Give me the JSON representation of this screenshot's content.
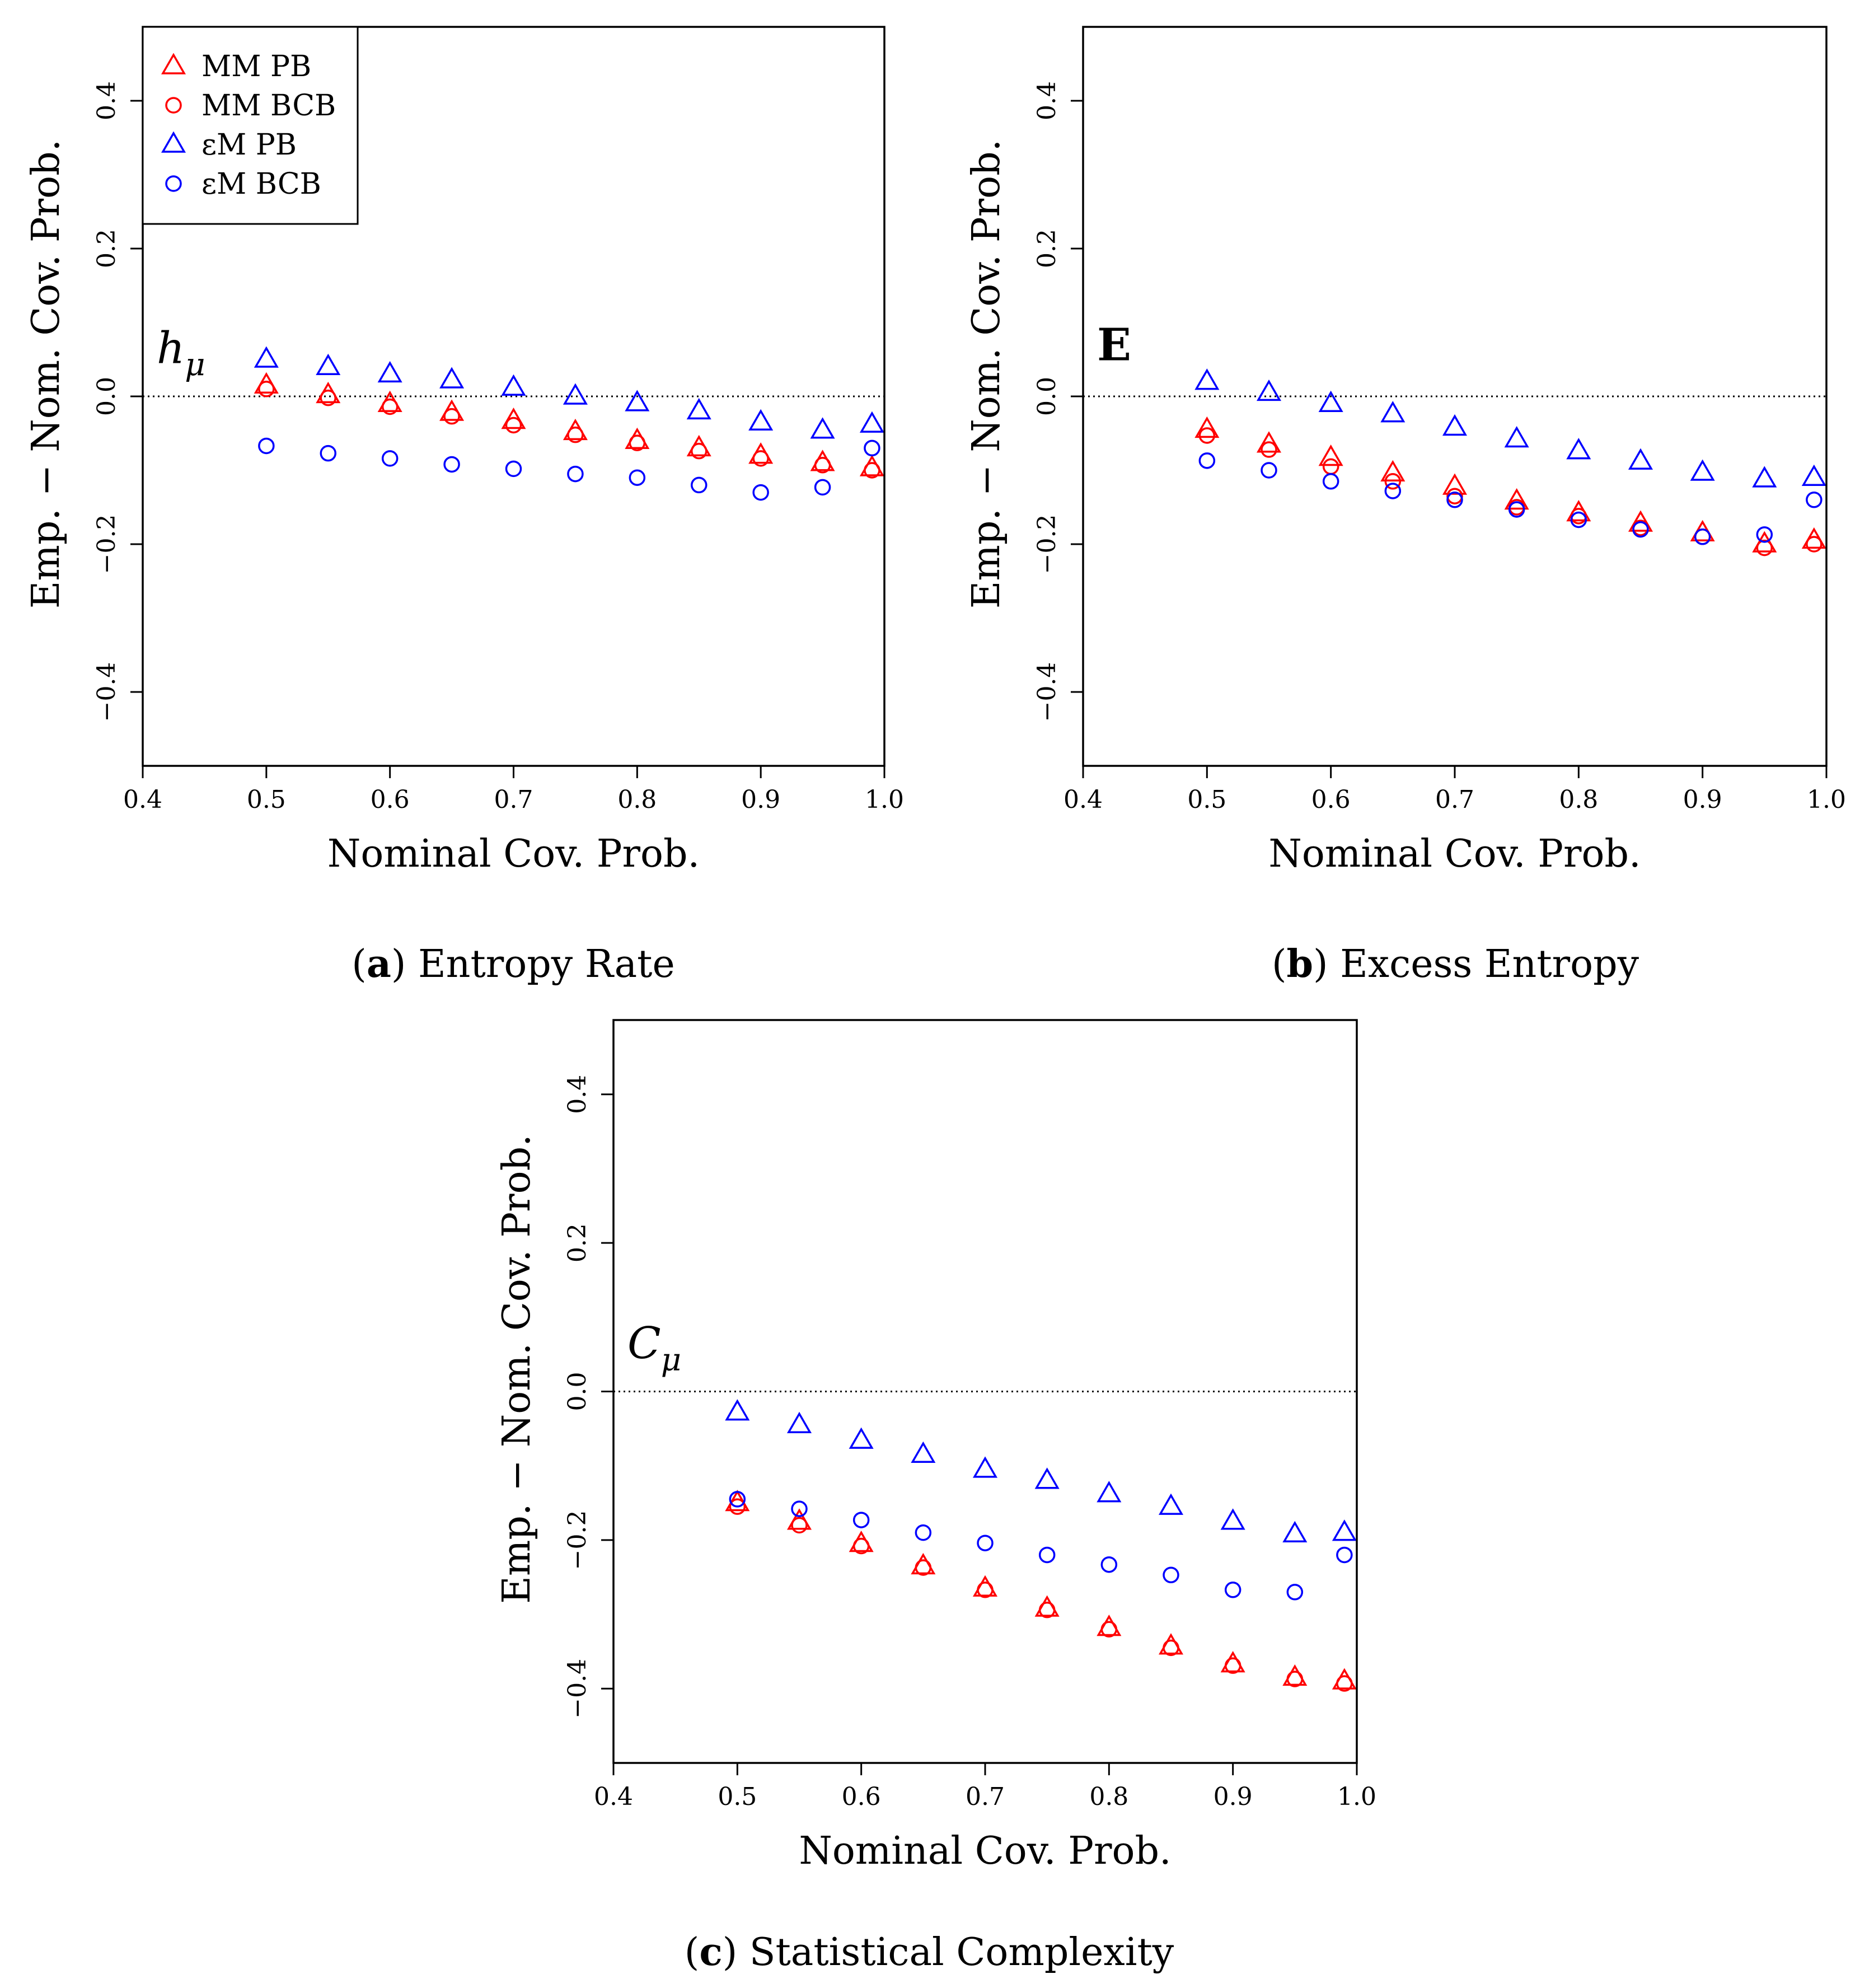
{
  "panels": [
    {
      "key": "a",
      "caption_letter": "a",
      "caption_text": "Entropy Rate",
      "var_label": "h",
      "var_sub": "μ",
      "chart_data": {
        "type": "scatter",
        "title": "",
        "xlabel": "Nominal Cov. Prob.",
        "ylabel": "Emp. − Nom. Cov. Prob.",
        "xlim": [
          0.4,
          1.0
        ],
        "ylim": [
          -0.5,
          0.5
        ],
        "xticks": [
          "0.4",
          "0.5",
          "0.6",
          "0.7",
          "0.8",
          "0.9",
          "1.0"
        ],
        "yticks": [
          "−0.4",
          "−0.2",
          "0.0",
          "0.2",
          "0.4"
        ],
        "reference_line_y": 0,
        "legend": [
          "MM PB",
          "MM BCB",
          "εM PB",
          "εM BCB"
        ],
        "legend_position": "top-left",
        "x": [
          0.5,
          0.55,
          0.6,
          0.65,
          0.7,
          0.75,
          0.8,
          0.85,
          0.9,
          0.95,
          0.99
        ],
        "series": [
          {
            "name": "MM PB",
            "marker": "triangle",
            "color": "#ff0000",
            "values": [
              0.015,
              0.002,
              -0.01,
              -0.022,
              -0.033,
              -0.048,
              -0.06,
              -0.07,
              -0.08,
              -0.09,
              -0.097
            ]
          },
          {
            "name": "MM BCB",
            "marker": "circle",
            "color": "#ff0000",
            "values": [
              0.01,
              -0.002,
              -0.014,
              -0.027,
              -0.039,
              -0.052,
              -0.063,
              -0.074,
              -0.084,
              -0.093,
              -0.1
            ]
          },
          {
            "name": "εM PB",
            "marker": "triangle",
            "color": "#0000ff",
            "values": [
              0.05,
              0.04,
              0.03,
              0.022,
              0.012,
              0.0,
              -0.009,
              -0.02,
              -0.035,
              -0.046,
              -0.038
            ]
          },
          {
            "name": "εM BCB",
            "marker": "circle",
            "color": "#0000ff",
            "values": [
              -0.067,
              -0.077,
              -0.084,
              -0.092,
              -0.098,
              -0.105,
              -0.11,
              -0.12,
              -0.13,
              -0.123,
              -0.07
            ]
          }
        ]
      }
    },
    {
      "key": "b",
      "caption_letter": "b",
      "caption_text": "Excess Entropy",
      "var_label": "E",
      "var_sub": "",
      "chart_data": {
        "type": "scatter",
        "title": "",
        "xlabel": "Nominal Cov. Prob.",
        "ylabel": "Emp. − Nom. Cov. Prob.",
        "xlim": [
          0.4,
          1.0
        ],
        "ylim": [
          -0.5,
          0.5
        ],
        "xticks": [
          "0.4",
          "0.5",
          "0.6",
          "0.7",
          "0.8",
          "0.9",
          "1.0"
        ],
        "yticks": [
          "−0.4",
          "−0.2",
          "0.0",
          "0.2",
          "0.4"
        ],
        "reference_line_y": 0,
        "x": [
          0.5,
          0.55,
          0.6,
          0.65,
          0.7,
          0.75,
          0.8,
          0.85,
          0.9,
          0.95,
          0.99
        ],
        "series": [
          {
            "name": "MM PB",
            "marker": "triangle",
            "color": "#ff0000",
            "values": [
              -0.045,
              -0.065,
              -0.083,
              -0.104,
              -0.122,
              -0.142,
              -0.158,
              -0.172,
              -0.185,
              -0.2,
              -0.195
            ]
          },
          {
            "name": "MM BCB",
            "marker": "circle",
            "color": "#ff0000",
            "values": [
              -0.053,
              -0.072,
              -0.095,
              -0.115,
              -0.135,
              -0.15,
              -0.162,
              -0.178,
              -0.19,
              -0.205,
              -0.2
            ]
          },
          {
            "name": "εM PB",
            "marker": "triangle",
            "color": "#0000ff",
            "values": [
              0.02,
              0.005,
              -0.01,
              -0.024,
              -0.042,
              -0.058,
              -0.074,
              -0.088,
              -0.103,
              -0.112,
              -0.11
            ]
          },
          {
            "name": "εM BCB",
            "marker": "circle",
            "color": "#0000ff",
            "values": [
              -0.087,
              -0.1,
              -0.115,
              -0.128,
              -0.14,
              -0.153,
              -0.167,
              -0.18,
              -0.19,
              -0.187,
              -0.14
            ]
          }
        ]
      }
    },
    {
      "key": "c",
      "caption_letter": "c",
      "caption_text": "Statistical Complexity",
      "var_label": "C",
      "var_sub": "μ",
      "chart_data": {
        "type": "scatter",
        "title": "",
        "xlabel": "Nominal Cov. Prob.",
        "ylabel": "Emp. − Nom. Cov. Prob.",
        "xlim": [
          0.4,
          1.0
        ],
        "ylim": [
          -0.5,
          0.5
        ],
        "xticks": [
          "0.4",
          "0.5",
          "0.6",
          "0.7",
          "0.8",
          "0.9",
          "1.0"
        ],
        "yticks": [
          "−0.4",
          "−0.2",
          "0.0",
          "0.2",
          "0.4"
        ],
        "reference_line_y": 0,
        "x": [
          0.5,
          0.55,
          0.6,
          0.65,
          0.7,
          0.75,
          0.8,
          0.85,
          0.9,
          0.95,
          0.99
        ],
        "series": [
          {
            "name": "MM PB",
            "marker": "triangle",
            "color": "#ff0000",
            "values": [
              -0.15,
              -0.175,
              -0.205,
              -0.235,
              -0.265,
              -0.292,
              -0.318,
              -0.343,
              -0.367,
              -0.385,
              -0.39
            ]
          },
          {
            "name": "MM BCB",
            "marker": "circle",
            "color": "#ff0000",
            "values": [
              -0.155,
              -0.18,
              -0.208,
              -0.237,
              -0.267,
              -0.294,
              -0.32,
              -0.345,
              -0.369,
              -0.387,
              -0.393
            ]
          },
          {
            "name": "εM PB",
            "marker": "triangle",
            "color": "#0000ff",
            "values": [
              -0.028,
              -0.045,
              -0.066,
              -0.085,
              -0.105,
              -0.12,
              -0.138,
              -0.155,
              -0.175,
              -0.192,
              -0.19
            ]
          },
          {
            "name": "εM BCB",
            "marker": "circle",
            "color": "#0000ff",
            "values": [
              -0.145,
              -0.158,
              -0.173,
              -0.19,
              -0.204,
              -0.22,
              -0.233,
              -0.247,
              -0.267,
              -0.27,
              -0.22
            ]
          }
        ]
      }
    }
  ]
}
